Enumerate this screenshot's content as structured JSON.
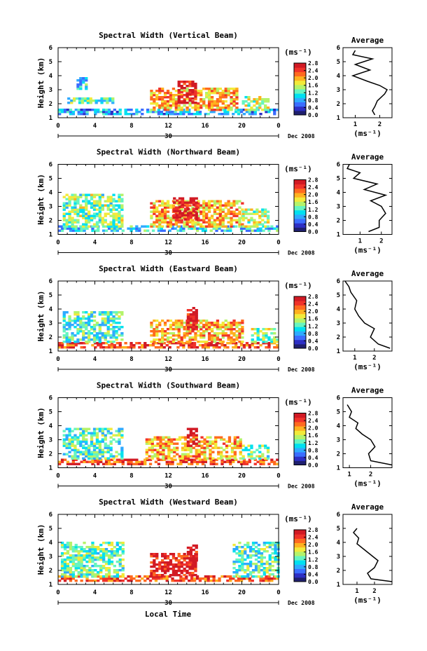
{
  "figure": {
    "date_label": "Dec 2008",
    "day_label": "30",
    "xlabel": "Local Time",
    "colorbar_unit": "(ms⁻¹)",
    "average_title": "Average",
    "average_xunit": "(ms⁻¹)",
    "colormap": [
      "#1f1f6e",
      "#2d2fc4",
      "#3b6dff",
      "#2faaff",
      "#00e0f0",
      "#66f5c0",
      "#b4f36a",
      "#f2ea3a",
      "#ffb11f",
      "#ff6a1f",
      "#f0322a",
      "#d11a24"
    ]
  },
  "chart_data": [
    {
      "type": "heatmap",
      "title": "Spectral Width (Vertical Beam)",
      "ylabel": "Height (km)",
      "xlim": [
        0,
        24
      ],
      "xticks": [
        "0",
        "4",
        "8",
        "12",
        "16",
        "20",
        "0"
      ],
      "ylim": [
        1,
        6
      ],
      "yticks": [
        "1",
        "2",
        "3",
        "4",
        "5",
        "6"
      ],
      "colorbar": {
        "range": [
          0,
          2.8
        ],
        "ticks": [
          "0.0",
          "0.4",
          "0.8",
          "1.2",
          "1.6",
          "2.0",
          "2.4",
          "2.8"
        ]
      },
      "regions": [
        {
          "x": [
            0,
            24
          ],
          "y": [
            1.2,
            1.5
          ],
          "value": 0.8
        },
        {
          "x": [
            1,
            6
          ],
          "y": [
            2.0,
            2.4
          ],
          "value": 1.2
        },
        {
          "x": [
            2,
            3
          ],
          "y": [
            3.0,
            3.8
          ],
          "value": 1.0
        },
        {
          "x": [
            10,
            19.5
          ],
          "y": [
            1.5,
            3.0
          ],
          "value": 2.0
        },
        {
          "x": [
            13,
            15
          ],
          "y": [
            2.0,
            3.5
          ],
          "value": 2.8
        },
        {
          "x": [
            20,
            23
          ],
          "y": [
            1.5,
            2.5
          ],
          "value": 1.6
        }
      ],
      "average": {
        "xticks": [
          "1",
          "2"
        ],
        "xlim": [
          0.5,
          2.5
        ],
        "points": [
          [
            1.8,
            1.2
          ],
          [
            1.7,
            1.5
          ],
          [
            1.8,
            1.8
          ],
          [
            1.9,
            2.2
          ],
          [
            2.2,
            2.7
          ],
          [
            2.3,
            3.0
          ],
          [
            2.0,
            3.3
          ],
          [
            1.5,
            3.6
          ],
          [
            0.9,
            4.0
          ],
          [
            1.6,
            4.4
          ],
          [
            1.0,
            4.8
          ],
          [
            1.7,
            5.2
          ],
          [
            0.9,
            5.5
          ],
          [
            1.0,
            5.8
          ]
        ]
      }
    },
    {
      "type": "heatmap",
      "title": "Spectral Width (Northward Beam)",
      "ylabel": "Height (km)",
      "xlim": [
        0,
        24
      ],
      "xticks": [
        "0",
        "4",
        "8",
        "12",
        "16",
        "20",
        "0"
      ],
      "ylim": [
        1,
        6
      ],
      "yticks": [
        "1",
        "2",
        "3",
        "4",
        "5",
        "6"
      ],
      "colorbar": {
        "range": [
          0,
          2.8
        ],
        "ticks": [
          "0.0",
          "0.4",
          "0.8",
          "1.2",
          "1.6",
          "2.0",
          "2.4",
          "2.8"
        ]
      },
      "regions": [
        {
          "x": [
            0,
            24
          ],
          "y": [
            1.2,
            1.5
          ],
          "value": 1.0
        },
        {
          "x": [
            0.5,
            7
          ],
          "y": [
            1.5,
            3.8
          ],
          "value": 1.4
        },
        {
          "x": [
            10,
            20
          ],
          "y": [
            1.5,
            3.3
          ],
          "value": 2.0
        },
        {
          "x": [
            12.5,
            15
          ],
          "y": [
            2.0,
            3.5
          ],
          "value": 2.8
        },
        {
          "x": [
            20,
            23
          ],
          "y": [
            1.5,
            2.8
          ],
          "value": 1.6
        }
      ],
      "average": {
        "xticks": [
          "1",
          "2"
        ],
        "xlim": [
          0.2,
          2.5
        ],
        "points": [
          [
            1.4,
            1.2
          ],
          [
            1.9,
            1.5
          ],
          [
            1.9,
            2.0
          ],
          [
            2.2,
            2.5
          ],
          [
            2.0,
            3.0
          ],
          [
            1.5,
            3.4
          ],
          [
            2.2,
            3.8
          ],
          [
            1.2,
            4.2
          ],
          [
            1.8,
            4.6
          ],
          [
            0.7,
            5.0
          ],
          [
            1.0,
            5.4
          ],
          [
            0.4,
            5.7
          ],
          [
            0.5,
            6.0
          ]
        ]
      }
    },
    {
      "type": "heatmap",
      "title": "Spectral Width (Eastward Beam)",
      "ylabel": "Height (km)",
      "xlim": [
        0,
        24
      ],
      "xticks": [
        "0",
        "4",
        "8",
        "12",
        "16",
        "20",
        "0"
      ],
      "ylim": [
        1,
        6
      ],
      "yticks": [
        "1",
        "2",
        "3",
        "4",
        "5",
        "6"
      ],
      "colorbar": {
        "range": [
          0,
          2.8
        ],
        "ticks": [
          "0.0",
          "0.4",
          "0.8",
          "1.2",
          "1.6",
          "2.0",
          "2.4",
          "2.8"
        ]
      },
      "regions": [
        {
          "x": [
            0,
            24
          ],
          "y": [
            1.2,
            1.6
          ],
          "value": 2.4
        },
        {
          "x": [
            0.5,
            7
          ],
          "y": [
            1.6,
            3.8
          ],
          "value": 1.2
        },
        {
          "x": [
            10,
            20
          ],
          "y": [
            1.6,
            3.2
          ],
          "value": 2.0
        },
        {
          "x": [
            14,
            15
          ],
          "y": [
            2.5,
            4.0
          ],
          "value": 2.8
        },
        {
          "x": [
            21,
            24
          ],
          "y": [
            1.6,
            2.5
          ],
          "value": 1.4
        }
      ],
      "average": {
        "xticks": [
          "1",
          "2"
        ],
        "xlim": [
          0.4,
          2.9
        ],
        "points": [
          [
            2.8,
            1.2
          ],
          [
            2.2,
            1.5
          ],
          [
            1.8,
            2.0
          ],
          [
            2.0,
            2.6
          ],
          [
            1.5,
            3.0
          ],
          [
            1.2,
            3.5
          ],
          [
            1.0,
            4.0
          ],
          [
            1.1,
            4.6
          ],
          [
            0.8,
            5.2
          ],
          [
            0.7,
            5.6
          ],
          [
            0.5,
            6.0
          ]
        ]
      }
    },
    {
      "type": "heatmap",
      "title": "Spectral Width (Southward Beam)",
      "ylabel": "Height (km)",
      "xlim": [
        0,
        24
      ],
      "xticks": [
        "0",
        "4",
        "8",
        "12",
        "16",
        "20",
        "0"
      ],
      "ylim": [
        1,
        6
      ],
      "yticks": [
        "1",
        "2",
        "3",
        "4",
        "5",
        "6"
      ],
      "colorbar": {
        "range": [
          0,
          2.8
        ],
        "ticks": [
          "0.0",
          "0.4",
          "0.8",
          "1.2",
          "1.6",
          "2.0",
          "2.4",
          "2.8"
        ]
      },
      "regions": [
        {
          "x": [
            0,
            24
          ],
          "y": [
            1.2,
            1.6
          ],
          "value": 2.4
        },
        {
          "x": [
            0.5,
            7
          ],
          "y": [
            1.6,
            3.8
          ],
          "value": 1.2
        },
        {
          "x": [
            9.5,
            20
          ],
          "y": [
            1.6,
            3.2
          ],
          "value": 2.0
        },
        {
          "x": [
            14,
            15
          ],
          "y": [
            2.5,
            3.8
          ],
          "value": 2.8
        },
        {
          "x": [
            20,
            23
          ],
          "y": [
            1.6,
            2.6
          ],
          "value": 1.4
        }
      ],
      "average": {
        "xticks": [
          "1",
          "2"
        ],
        "xlim": [
          0.7,
          3.0
        ],
        "points": [
          [
            3.0,
            1.2
          ],
          [
            2.0,
            1.5
          ],
          [
            1.9,
            2.0
          ],
          [
            2.2,
            2.5
          ],
          [
            2.0,
            3.0
          ],
          [
            1.6,
            3.4
          ],
          [
            1.3,
            3.8
          ],
          [
            1.4,
            4.2
          ],
          [
            1.0,
            4.6
          ],
          [
            1.1,
            5.0
          ],
          [
            0.9,
            5.5
          ]
        ]
      }
    },
    {
      "type": "heatmap",
      "title": "Spectral Width (Westward Beam)",
      "ylabel": "Height (km)",
      "xlim": [
        0,
        24
      ],
      "xticks": [
        "0",
        "4",
        "8",
        "12",
        "16",
        "20",
        "0"
      ],
      "ylim": [
        1,
        6
      ],
      "yticks": [
        "1",
        "2",
        "3",
        "4",
        "5",
        "6"
      ],
      "colorbar": {
        "range": [
          0,
          2.8
        ],
        "ticks": [
          "0.0",
          "0.4",
          "0.8",
          "1.2",
          "1.6",
          "2.0",
          "2.4",
          "2.8"
        ]
      },
      "regions": [
        {
          "x": [
            0,
            24
          ],
          "y": [
            1.2,
            1.5
          ],
          "value": 2.4
        },
        {
          "x": [
            0.3,
            7
          ],
          "y": [
            1.5,
            4.0
          ],
          "value": 1.3
        },
        {
          "x": [
            10,
            15
          ],
          "y": [
            1.6,
            3.2
          ],
          "value": 2.6
        },
        {
          "x": [
            14,
            15
          ],
          "y": [
            2.5,
            3.8
          ],
          "value": 2.8
        },
        {
          "x": [
            19,
            24
          ],
          "y": [
            1.5,
            4.0
          ],
          "value": 1.2
        }
      ],
      "average": {
        "xticks": [
          "1",
          "2"
        ],
        "xlim": [
          0.2,
          3.0
        ],
        "points": [
          [
            3.0,
            1.2
          ],
          [
            1.8,
            1.4
          ],
          [
            1.6,
            1.8
          ],
          [
            2.0,
            2.2
          ],
          [
            2.2,
            2.7
          ],
          [
            1.8,
            3.1
          ],
          [
            1.4,
            3.5
          ],
          [
            1.0,
            3.9
          ],
          [
            1.1,
            4.3
          ],
          [
            0.8,
            4.7
          ],
          [
            1.0,
            5.0
          ]
        ]
      }
    }
  ]
}
